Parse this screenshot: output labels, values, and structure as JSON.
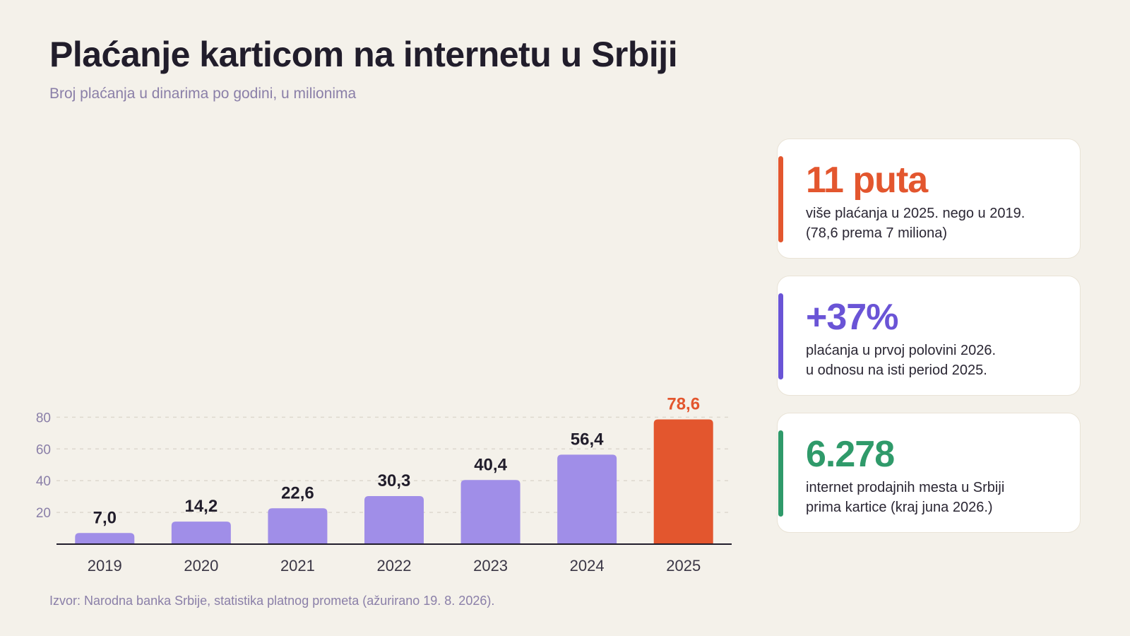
{
  "title": "Plaćanje karticom na internetu u Srbiji",
  "subtitle": "Broj plaćanja u dinarima po godini, u milionima",
  "source": "Izvor: Narodna banka Srbije, statistika platnog prometa (ažurirano 19. 8. 2026).",
  "colors": {
    "bar": "#a08ee8",
    "highlight_bar": "#e3562e",
    "grid": "#ddd8ce",
    "axis": "#211d2b",
    "tick_text": "#8a7fa8",
    "value_text": "#211d2b",
    "year_text": "#3a3645"
  },
  "chart_data": {
    "type": "bar",
    "categories": [
      "2019",
      "2020",
      "2021",
      "2022",
      "2023",
      "2024",
      "2025"
    ],
    "values": [
      7.0,
      14.2,
      22.6,
      30.3,
      40.4,
      56.4,
      78.6
    ],
    "value_labels": [
      "7,0",
      "14,2",
      "22,6",
      "30,3",
      "40,4",
      "56,4",
      "78,6"
    ],
    "highlight_index": 6,
    "title": "Plaćanje karticom na internetu u Srbiji",
    "subtitle": "Broj plaćanja u dinarima po godini, u milionima",
    "xlabel": "",
    "ylabel": "",
    "ylim": [
      0,
      80
    ],
    "yticks": [
      20,
      40,
      60,
      80
    ],
    "grid": true,
    "legend": "none"
  },
  "cards": [
    {
      "value": "11 puta",
      "line1": "više plaćanja u 2025. nego u 2019.",
      "line2": "(78,6 prema 7 miliona)",
      "color": "#e3562e"
    },
    {
      "value": "+37%",
      "line1": "plaćanja u prvoj polovini 2026.",
      "line2": "u odnosu na isti period 2025.",
      "color": "#6a54d6"
    },
    {
      "value": "6.278",
      "line1": "internet prodajnih mesta u Srbiji",
      "line2": "prima kartice (kraj juna 2026.)",
      "color": "#2f9a6a"
    }
  ]
}
